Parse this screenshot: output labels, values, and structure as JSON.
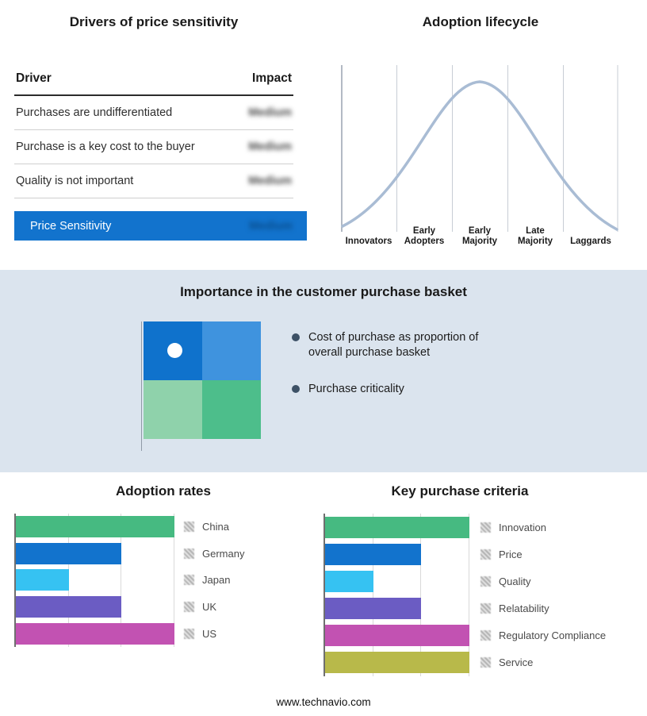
{
  "page": {
    "footer_url": "www.technavio.com",
    "background": "#ffffff",
    "section_background": "#dbe4ee"
  },
  "drivers_table": {
    "title": "Drivers of price sensitivity",
    "col_driver": "Driver",
    "col_impact": "Impact",
    "rows": [
      {
        "driver": "Purchases are undifferentiated",
        "impact": "Medium"
      },
      {
        "driver": "Purchase is a key cost to the buyer",
        "impact": "Medium"
      },
      {
        "driver": "Quality is not important",
        "impact": "Medium"
      }
    ],
    "summary": {
      "label": "Price Sensitivity",
      "impact": "Medium"
    },
    "accent_color": "#1273cd"
  },
  "lifecycle": {
    "title": "Adoption lifecycle",
    "stages": [
      "Innovators",
      "Early Adopters",
      "Early Majority",
      "Late Majority",
      "Laggards"
    ],
    "curve_color": "#a9bcd4",
    "curve_shape": "bell curve peaking at Early Majority"
  },
  "purchase_basket": {
    "title": "Importance in the customer purchase basket",
    "bullets": [
      "Cost of purchase as proportion of overall purchase basket",
      "Purchase criticality"
    ],
    "quadrant_colors": [
      "#0f72cc",
      "#3f93de",
      "#8fd2ab",
      "#4dbe8b"
    ],
    "marker_position": "top-left"
  },
  "chart_data": [
    {
      "type": "bar",
      "orientation": "horizontal",
      "title": "Adoption rates",
      "categories": [
        "China",
        "Germany",
        "Japan",
        "UK",
        "US"
      ],
      "values": [
        3,
        2,
        1,
        2,
        3
      ],
      "colors": [
        "#46ba81",
        "#1273cd",
        "#36c2f2",
        "#6b5cc3",
        "#c252b2"
      ],
      "xlim": [
        0,
        3
      ],
      "grid": true,
      "legend_position": "right",
      "xlabel": "",
      "ylabel": ""
    },
    {
      "type": "bar",
      "orientation": "horizontal",
      "title": "Key purchase criteria",
      "categories": [
        "Innovation",
        "Price",
        "Quality",
        "Relatability",
        "Regulatory Compliance",
        "Service"
      ],
      "values": [
        3,
        2,
        1,
        2,
        3,
        3
      ],
      "colors": [
        "#46ba81",
        "#1273cd",
        "#36c2f2",
        "#6b5cc3",
        "#c252b2",
        "#b8b94a"
      ],
      "xlim": [
        0,
        3
      ],
      "grid": true,
      "legend_position": "right",
      "xlabel": "",
      "ylabel": ""
    }
  ]
}
